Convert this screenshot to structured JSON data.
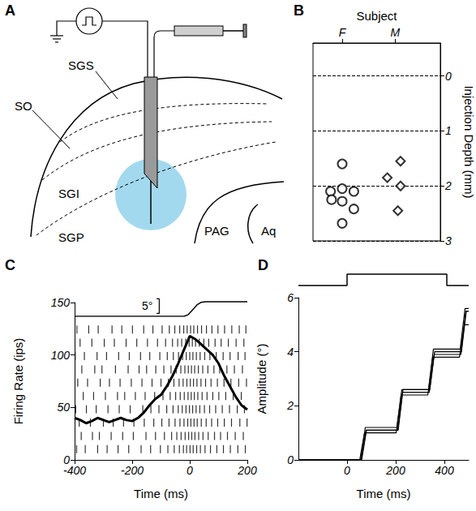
{
  "diagram": {
    "panel": "A",
    "labels": [
      "SGS",
      "SO",
      "SGI",
      "SGP",
      "PAG",
      "Aq"
    ]
  },
  "chart_data": [
    {
      "panel": "B",
      "type": "scatter",
      "xlabel": "Subject",
      "ylabel": "Injection Depth (mm)",
      "xlim": [
        0.45,
        2.85
      ],
      "xticks": [
        {
          "value": 1,
          "label": "F"
        },
        {
          "value": 2,
          "label": "M"
        }
      ],
      "ylim": [
        3,
        -0.6
      ],
      "yticks": [
        0,
        1,
        2,
        3
      ],
      "grid": true,
      "series": [
        {
          "marker": "circle",
          "x": [
            1.0,
            0.78,
            1.0,
            1.22,
            0.8,
            1.0,
            1.22,
            1.0
          ],
          "values": [
            1.6,
            2.1,
            2.05,
            2.1,
            2.25,
            2.28,
            2.42,
            2.68
          ]
        },
        {
          "marker": "diamond",
          "x": [
            2.1,
            1.85,
            2.1,
            2.05
          ],
          "values": [
            1.55,
            1.85,
            2.0,
            2.45
          ]
        }
      ]
    },
    {
      "panel": "C",
      "type": "line",
      "xlabel": "Time (ms)",
      "ylabel": "Firing Rate (ips)",
      "xlim": [
        -400,
        200
      ],
      "xticks": [
        -400,
        -200,
        0,
        200
      ],
      "ylim": [
        0,
        150
      ],
      "yticks": [
        0,
        50,
        100,
        150
      ],
      "x": [
        -400,
        -380,
        -360,
        -340,
        -320,
        -300,
        -280,
        -260,
        -240,
        -220,
        -200,
        -180,
        -160,
        -140,
        -120,
        -100,
        -80,
        -60,
        -40,
        -20,
        0,
        20,
        40,
        60,
        80,
        100,
        120,
        140,
        160,
        180,
        200
      ],
      "values": [
        40,
        38,
        35,
        37,
        40,
        38,
        36,
        38,
        40,
        38,
        37,
        40,
        45,
        52,
        58,
        62,
        70,
        80,
        92,
        105,
        118,
        115,
        110,
        105,
        100,
        92,
        80,
        70,
        60,
        52,
        48
      ],
      "raster": [
        [
          -392,
          -351,
          -318,
          -270,
          -236,
          -199,
          -160,
          -128,
          -96,
          -71,
          -52,
          -35,
          -21,
          -9,
          3,
          14,
          27,
          41,
          58,
          77,
          98,
          121,
          146,
          172,
          195
        ],
        [
          -381,
          -340,
          -297,
          -262,
          -221,
          -184,
          -147,
          -112,
          -84,
          -60,
          -42,
          -28,
          -14,
          -2,
          9,
          20,
          33,
          49,
          66,
          88,
          109,
          134,
          161,
          188
        ],
        [
          -398,
          -366,
          -322,
          -289,
          -247,
          -210,
          -171,
          -139,
          -104,
          -78,
          -57,
          -39,
          -25,
          -12,
          0,
          11,
          23,
          36,
          52,
          70,
          92,
          116,
          140,
          168,
          192
        ],
        [
          -375,
          -330,
          -305,
          -258,
          -214,
          -176,
          -150,
          -118,
          -90,
          -65,
          -47,
          -31,
          -17,
          -5,
          6,
          17,
          30,
          45,
          63,
          84,
          104,
          129,
          155,
          183
        ],
        [
          -389,
          -355,
          -311,
          -279,
          -242,
          -203,
          -166,
          -131,
          -100,
          -74,
          -55,
          -37,
          -23,
          -10,
          2,
          13,
          25,
          39,
          55,
          74,
          96,
          119,
          143,
          170,
          197
        ],
        [
          -370,
          -334,
          -293,
          -251,
          -226,
          -189,
          -155,
          -122,
          -93,
          -68,
          -49,
          -33,
          -19,
          -6,
          5,
          16,
          28,
          43,
          60,
          80,
          101,
          125,
          151,
          179
        ],
        [
          -396,
          -359,
          -325,
          -284,
          -245,
          -207,
          -163,
          -135,
          -107,
          -80,
          -58,
          -40,
          -26,
          -13,
          -1,
          10,
          22,
          35,
          51,
          69,
          90,
          113,
          138,
          165,
          190
        ],
        [
          -384,
          -345,
          -300,
          -266,
          -230,
          -194,
          -158,
          -125,
          -97,
          -72,
          -51,
          -34,
          -20,
          -7,
          4,
          15,
          26,
          40,
          57,
          76,
          97,
          120,
          145,
          174,
          199
        ],
        [
          -377,
          -338,
          -314,
          -273,
          -233,
          -196,
          -152,
          -119,
          -88,
          -63,
          -45,
          -30,
          -16,
          -4,
          7,
          18,
          31,
          46,
          64,
          86,
          107,
          131,
          158,
          186
        ],
        [
          -393,
          -363,
          -320,
          -287,
          -249,
          -212,
          -169,
          -136,
          -102,
          -76,
          -54,
          -36,
          -22,
          -11,
          1,
          12,
          24,
          37,
          53,
          72,
          94,
          117,
          141,
          167,
          193
        ]
      ],
      "eye_position": {
        "x": [
          -400,
          -20,
          -5,
          10,
          25,
          40,
          55,
          200
        ],
        "values": [
          0,
          0,
          0.6,
          2.2,
          3.9,
          4.8,
          5,
          5
        ],
        "ylim": [
          0,
          10
        ]
      },
      "scale_bar": {
        "value": 5,
        "label": "5°"
      }
    },
    {
      "panel": "D",
      "type": "line",
      "xlabel": "Time (ms)",
      "ylabel": "Amplitude (°)",
      "xlim": [
        -200,
        500
      ],
      "xticks": [
        0,
        200,
        400
      ],
      "ylim": [
        0,
        6
      ],
      "yticks": [
        0,
        2,
        4,
        6
      ],
      "series": [
        {
          "x": [
            -200,
            55,
            75,
            205,
            225,
            335,
            355,
            465,
            485,
            500
          ],
          "values": [
            0,
            0,
            1.2,
            1.2,
            2.6,
            2.6,
            4.1,
            4.1,
            5.6,
            5.6
          ]
        },
        {
          "x": [
            -200,
            58,
            78,
            208,
            228,
            338,
            358,
            468,
            488,
            500
          ],
          "values": [
            0,
            0,
            1.1,
            1.1,
            2.5,
            2.5,
            3.9,
            3.9,
            5.5,
            5.5
          ]
        },
        {
          "x": [
            -200,
            52,
            72,
            202,
            222,
            332,
            352,
            462,
            482,
            500
          ],
          "values": [
            0,
            0,
            1.0,
            1.0,
            2.4,
            2.4,
            3.8,
            3.8,
            5.0,
            5.0
          ]
        },
        {
          "x": [
            -200,
            60,
            80,
            210,
            230,
            340,
            360,
            470,
            490,
            500
          ],
          "values": [
            0,
            0,
            1.1,
            1.1,
            2.6,
            2.6,
            4.0,
            4.0,
            5.5,
            5.5
          ]
        }
      ],
      "stimulus": {
        "x": [
          -200,
          0,
          0,
          410,
          410,
          500
        ],
        "values": [
          0,
          0,
          1,
          1,
          0,
          0
        ]
      }
    }
  ]
}
